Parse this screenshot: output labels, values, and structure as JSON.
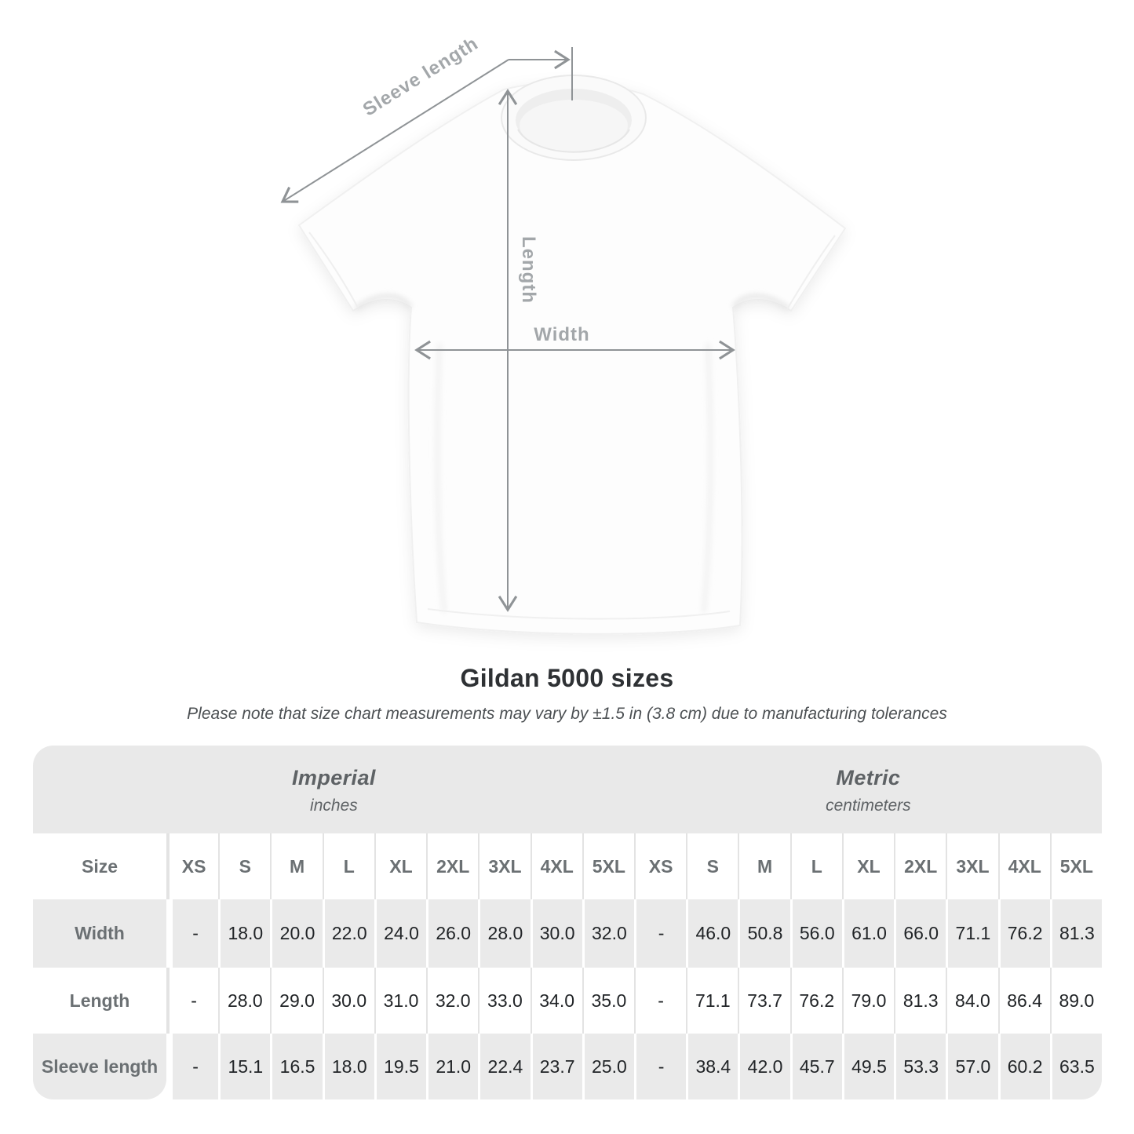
{
  "page": {
    "title": "Gildan 5000 sizes",
    "subtitle": "Please note that size chart measurements may vary by ±1.5 in (3.8 cm) due to manufacturing tolerances"
  },
  "diagram": {
    "labels": {
      "sleeve_length": "Sleeve length",
      "length": "Length",
      "width": "Width"
    }
  },
  "chart_data": {
    "type": "table",
    "title": "Gildan 5000 sizes",
    "note": "Please note that size chart measurements may vary by ±1.5 in (3.8 cm) due to manufacturing tolerances",
    "column_groups": [
      {
        "name": "Imperial",
        "unit": "inches"
      },
      {
        "name": "Metric",
        "unit": "centimeters"
      }
    ],
    "size_label": "Size",
    "sizes": [
      "XS",
      "S",
      "M",
      "L",
      "XL",
      "2XL",
      "3XL",
      "4XL",
      "5XL"
    ],
    "rows": [
      {
        "measure": "Width",
        "imperial": [
          "-",
          "18.0",
          "20.0",
          "22.0",
          "24.0",
          "26.0",
          "28.0",
          "30.0",
          "32.0"
        ],
        "metric": [
          "-",
          "46.0",
          "50.8",
          "56.0",
          "61.0",
          "66.0",
          "71.1",
          "76.2",
          "81.3"
        ]
      },
      {
        "measure": "Length",
        "imperial": [
          "-",
          "28.0",
          "29.0",
          "30.0",
          "31.0",
          "32.0",
          "33.0",
          "34.0",
          "35.0"
        ],
        "metric": [
          "-",
          "71.1",
          "73.7",
          "76.2",
          "79.0",
          "81.3",
          "84.0",
          "86.4",
          "89.0"
        ]
      },
      {
        "measure": "Sleeve length",
        "imperial": [
          "-",
          "15.1",
          "16.5",
          "18.0",
          "19.5",
          "21.0",
          "22.4",
          "23.7",
          "25.0"
        ],
        "metric": [
          "-",
          "38.4",
          "42.0",
          "45.7",
          "49.5",
          "53.3",
          "57.0",
          "60.2",
          "63.5"
        ]
      }
    ]
  },
  "colors": {
    "header_band": "#e9e9e9",
    "row_gray": "#eaeaea",
    "row_white": "#ffffff",
    "label_text": "#6b7073",
    "value_text": "#212427",
    "annotation_line": "#8f9396",
    "annotation_label": "#a3a7aa"
  }
}
